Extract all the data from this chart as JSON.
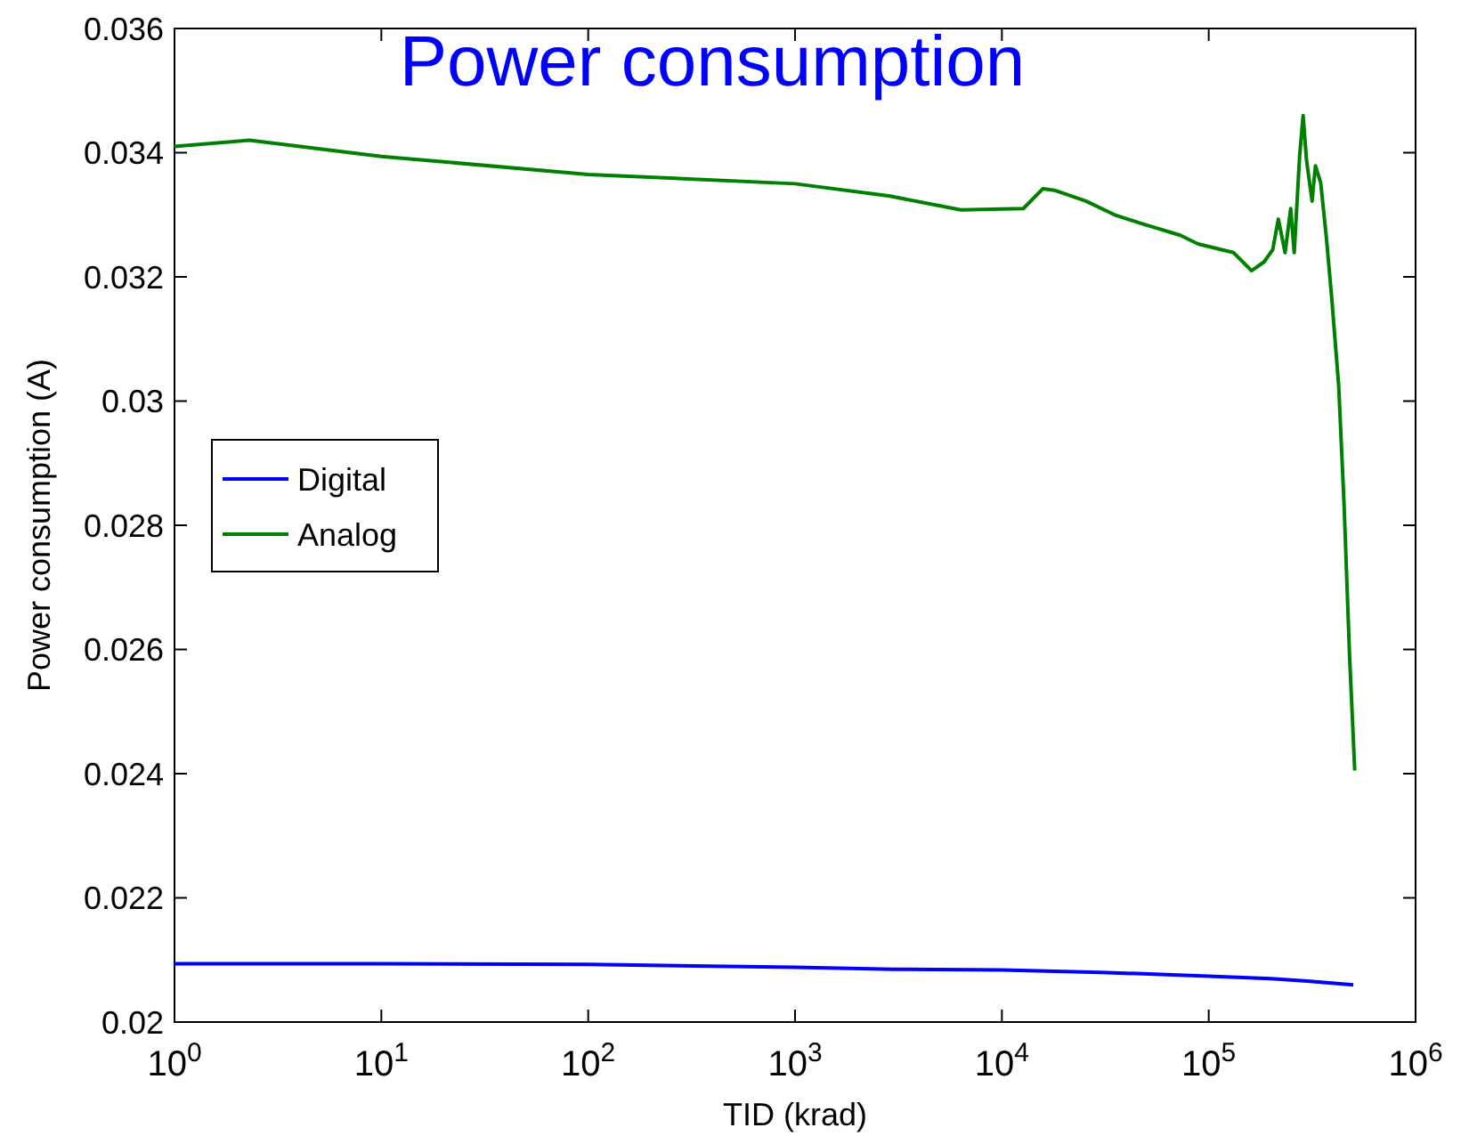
{
  "chart_data": {
    "type": "line",
    "title": "Power consumption",
    "xlabel": "TID (krad)",
    "ylabel": "Power consumption (A)",
    "log": "x",
    "xlim": [
      1,
      1000000
    ],
    "xticks": [
      {
        "value": 1,
        "label": "10$^{0}$"
      },
      {
        "value": 10,
        "label": "10$^{1}$"
      },
      {
        "value": 100,
        "label": "10$^{2}$"
      },
      {
        "value": 1000,
        "label": "10$^{3}$"
      },
      {
        "value": 10000,
        "label": "10$^{4}$"
      },
      {
        "value": 100000,
        "label": "10$^{5}$"
      },
      {
        "value": 1000000,
        "label": "10$^{6}$"
      }
    ],
    "ylim": [
      0.02,
      0.036
    ],
    "yticks": [
      0.02,
      0.022,
      0.024,
      0.026,
      0.028,
      0.03,
      0.032,
      0.034,
      0.036
    ],
    "legend": "left",
    "grid": false,
    "line_style": "solid",
    "series": [
      {
        "name": "Digital",
        "color": "#0000ff",
        "x": [
          1,
          10,
          100,
          1000,
          3000,
          10000,
          30000,
          100000,
          200000,
          300000,
          500000
        ],
        "values": [
          0.02094,
          0.02094,
          0.02093,
          0.02088,
          0.02085,
          0.02084,
          0.0208,
          0.02074,
          0.0207,
          0.02066,
          0.0206
        ]
      },
      {
        "name": "Analog",
        "color": "#008000",
        "x": [
          1,
          2.3,
          10,
          100,
          1000,
          2880,
          6340,
          12700,
          15800,
          18200,
          25500,
          35600,
          46200,
          72800,
          88800,
          132000,
          161000,
          185000,
          204000,
          217000,
          234000,
          249000,
          259000,
          275000,
          286000,
          297000,
          316000,
          328000,
          348000,
          370000,
          393000,
          425000,
          451000,
          479000,
          508000
        ],
        "values": [
          0.0341,
          0.0342,
          0.03394,
          0.03365,
          0.0335,
          0.0333,
          0.03308,
          0.0331,
          0.03342,
          0.03339,
          0.03322,
          0.03299,
          0.03287,
          0.03267,
          0.03253,
          0.03239,
          0.0321,
          0.03224,
          0.03244,
          0.03293,
          0.03239,
          0.0331,
          0.03239,
          0.03394,
          0.0346,
          0.03388,
          0.03322,
          0.03379,
          0.03351,
          0.03265,
          0.03167,
          0.03024,
          0.02834,
          0.02594,
          0.02405
        ]
      }
    ]
  }
}
